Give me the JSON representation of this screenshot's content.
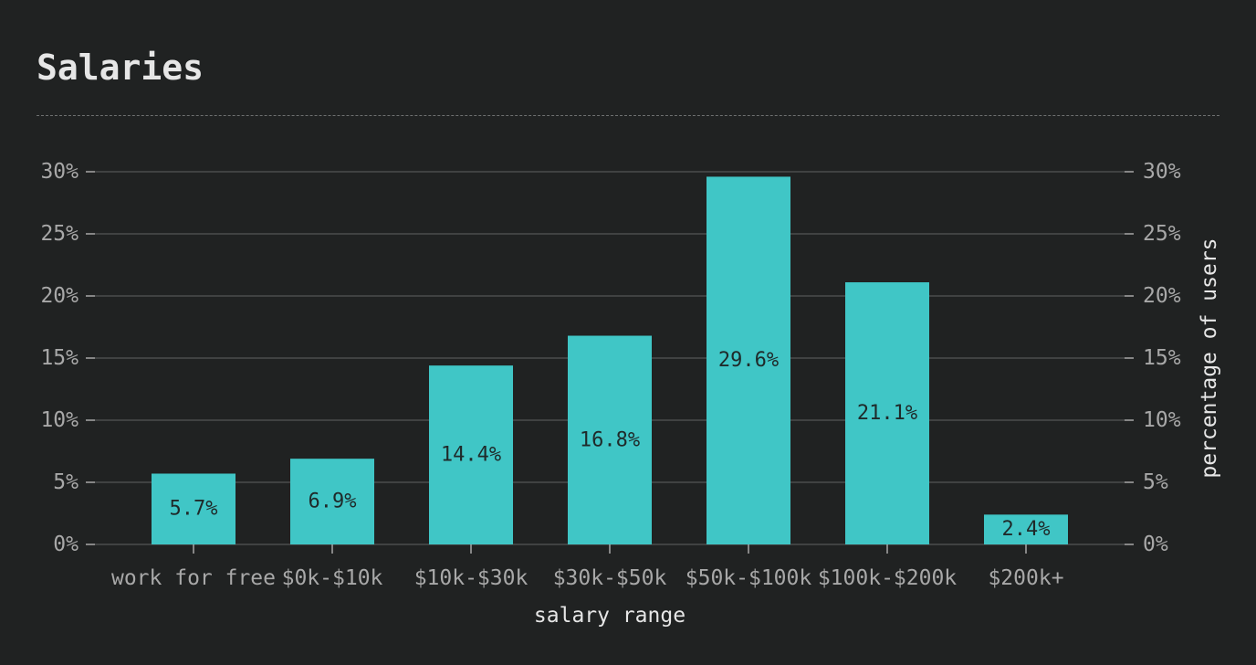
{
  "page": {
    "title": "Salaries"
  },
  "colors": {
    "background": "#202222",
    "bar": "#40c6c6",
    "grid": "#4a4c4c",
    "text": "#a8a8a8",
    "title": "#e6e6e6"
  },
  "chart_data": {
    "type": "bar",
    "title": "Salaries",
    "xlabel": "salary range",
    "ylabel": "percentage of users",
    "categories": [
      "work for free",
      "$0k-$10k",
      "$10k-$30k",
      "$30k-$50k",
      "$50k-$100k",
      "$100k-$200k",
      "$200k+"
    ],
    "values": [
      5.7,
      6.9,
      14.4,
      16.8,
      29.6,
      21.1,
      2.4
    ],
    "value_labels": [
      "5.7%",
      "6.9%",
      "14.4%",
      "16.8%",
      "29.6%",
      "21.1%",
      "2.4%"
    ],
    "ylim": [
      0,
      30
    ],
    "yticks": [
      0,
      5,
      10,
      15,
      20,
      25,
      30
    ],
    "ytick_labels": [
      "0%",
      "5%",
      "10%",
      "15%",
      "20%",
      "25%",
      "30%"
    ],
    "grid": true,
    "dual_y_axis": true
  }
}
